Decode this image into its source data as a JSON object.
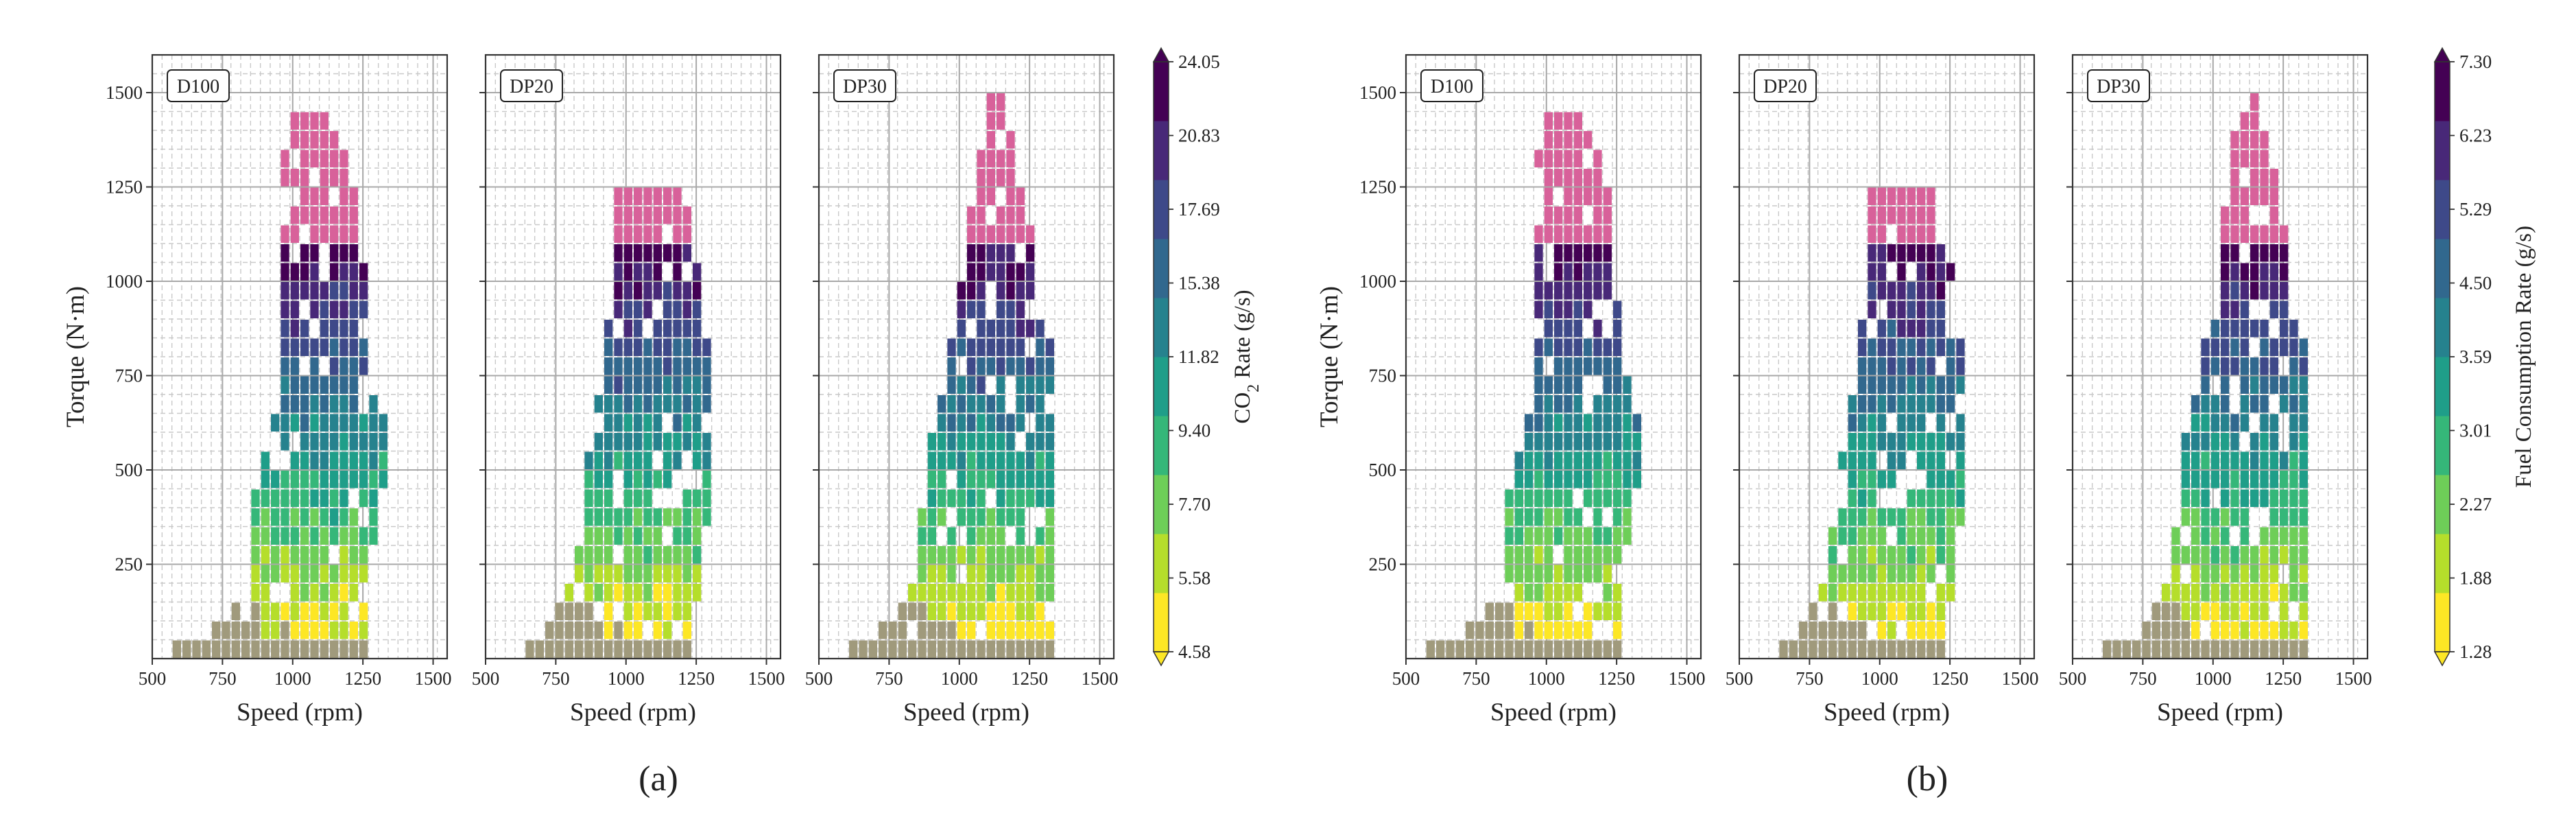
{
  "chart_data": [
    {
      "type": "heatmap",
      "label": "(a)",
      "colorbar": {
        "title": "CO₂ Rate (g/s)",
        "title_main": "CO",
        "title_sub": "2",
        "title_rest": " Rate (g/s)",
        "ticks": [
          "24.05",
          "20.83",
          "17.69",
          "15.38",
          "11.82",
          "9.40",
          "7.70",
          "5.58",
          "4.58"
        ]
      },
      "panels": [
        {
          "name": "D100",
          "xlabel": "Speed (rpm)",
          "ylabel": "Torque (N·m)",
          "shape_variant": 0
        },
        {
          "name": "DP20",
          "xlabel": "Speed (rpm)",
          "ylabel": "",
          "shape_variant": 1
        },
        {
          "name": "DP30",
          "xlabel": "Speed (rpm)",
          "ylabel": "",
          "shape_variant": 2
        }
      ]
    },
    {
      "type": "heatmap",
      "label": "(b)",
      "colorbar": {
        "title": "Fuel Consumption Rate (g/s)",
        "title_main": "Fuel Consumption Rate (g/s)",
        "title_sub": "",
        "title_rest": "",
        "ticks": [
          "7.30",
          "6.23",
          "5.29",
          "4.50",
          "3.59",
          "3.01",
          "2.27",
          "1.88",
          "1.28"
        ]
      },
      "panels": [
        {
          "name": "D100",
          "xlabel": "Speed (rpm)",
          "ylabel": "Torque (N·m)",
          "shape_variant": 0
        },
        {
          "name": "DP20",
          "xlabel": "Speed (rpm)",
          "ylabel": "",
          "shape_variant": 1
        },
        {
          "name": "DP30",
          "xlabel": "Speed (rpm)",
          "ylabel": "",
          "shape_variant": 2
        }
      ]
    }
  ],
  "axes": {
    "x_ticks": [
      500,
      750,
      1000,
      1250,
      1500
    ],
    "y_ticks": [
      250,
      500,
      750,
      1000,
      1250,
      1500
    ],
    "xlim": [
      500,
      1550
    ],
    "ylim": [
      0,
      1600
    ]
  },
  "colors": {
    "idle": "#a09a7c",
    "top": "#d8619a",
    "viridis": [
      "#fde725",
      "#b5de2b",
      "#6ece58",
      "#35b779",
      "#1f9e89",
      "#26828e",
      "#31688e",
      "#3e4989",
      "#482878",
      "#440154"
    ]
  }
}
